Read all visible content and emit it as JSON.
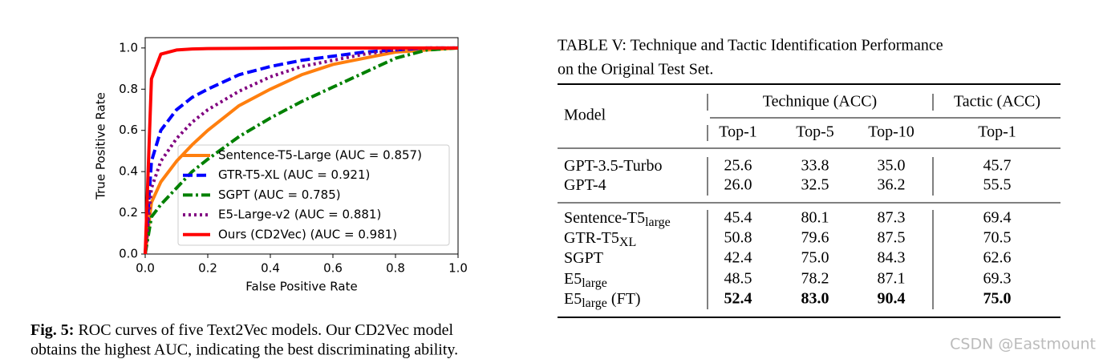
{
  "chart_data": {
    "type": "line",
    "xlabel": "False Positive Rate",
    "ylabel": "True Positive Rate",
    "x": [
      0,
      0.02,
      0.05,
      0.1,
      0.15,
      0.2,
      0.3,
      0.4,
      0.5,
      0.6,
      0.7,
      0.8,
      0.9,
      1
    ],
    "series": [
      {
        "name": "Sentence-T5-Large (AUC = 0.857)",
        "color": "#ff7f0e",
        "linestyle": "solid",
        "values": [
          0,
          0.25,
          0.35,
          0.45,
          0.53,
          0.6,
          0.72,
          0.8,
          0.87,
          0.92,
          0.95,
          0.98,
          0.99,
          1
        ]
      },
      {
        "name": "GTR-T5-XL (AUC = 0.921)",
        "color": "#0000ff",
        "linestyle": "dashed",
        "values": [
          0,
          0.45,
          0.6,
          0.7,
          0.76,
          0.8,
          0.87,
          0.91,
          0.94,
          0.96,
          0.98,
          0.99,
          1,
          1
        ]
      },
      {
        "name": "SGPT (AUC = 0.785)",
        "color": "#008000",
        "linestyle": "dashdot",
        "values": [
          0,
          0.18,
          0.24,
          0.32,
          0.4,
          0.46,
          0.57,
          0.66,
          0.74,
          0.81,
          0.88,
          0.95,
          0.99,
          1
        ]
      },
      {
        "name": "E5-Large-v2 (AUC = 0.881)",
        "color": "#800080",
        "linestyle": "dotted",
        "values": [
          0,
          0.32,
          0.45,
          0.56,
          0.64,
          0.7,
          0.79,
          0.86,
          0.91,
          0.94,
          0.97,
          0.99,
          1,
          1
        ]
      },
      {
        "name": "Ours (CD2Vec) (AUC = 0.981)",
        "color": "#ff0000",
        "linestyle": "solid",
        "values": [
          0,
          0.85,
          0.97,
          0.99,
          0.995,
          0.997,
          0.998,
          0.999,
          1,
          1,
          1,
          1,
          1,
          1
        ]
      }
    ],
    "xlim": [
      0,
      1
    ],
    "ylim": [
      0,
      1.05
    ],
    "xticks": [
      {
        "value": 0,
        "label": "0.0"
      },
      0.2,
      0.4,
      0.6,
      0.8,
      {
        "value": 1,
        "label": "1.0"
      }
    ],
    "yticks": [
      {
        "value": 0,
        "label": "0.0"
      },
      0.2,
      0.4,
      0.6,
      0.8,
      {
        "value": 1,
        "label": "1.0"
      }
    ],
    "legend": "lower right"
  },
  "figure_caption": {
    "label": "Fig. 5:",
    "text_lines": [
      "ROC curves of five Text2Vec models. Our CD2Vec model",
      "obtains the highest AUC, indicating the best discriminating ability."
    ]
  },
  "table": {
    "caption_lines": [
      "TABLE V: Technique and Tactic Identification Performance",
      "on the Original Test Set."
    ],
    "header": {
      "model": "Model",
      "groups": [
        "Technique (ACC)",
        "Tactic (ACC)"
      ],
      "columns": [
        "Top-1",
        "Top-5",
        "Top-10",
        "Top-1"
      ]
    },
    "row_groups": [
      [
        {
          "model": {
            "name": "GPT-3.5-Turbo"
          },
          "cells": [
            "25.6",
            "33.8",
            "35.0",
            "45.7"
          ]
        },
        {
          "model": {
            "name": "GPT-4"
          },
          "cells": [
            "26.0",
            "32.5",
            "36.2",
            "55.5"
          ]
        }
      ],
      [
        {
          "model": {
            "name": "Sentence-T5",
            "sub": "large"
          },
          "cells": [
            "45.4",
            "80.1",
            "87.3",
            "69.4"
          ]
        },
        {
          "model": {
            "name": "GTR-T5",
            "sub": "XL"
          },
          "cells": [
            "50.8",
            "79.6",
            "87.5",
            "70.5"
          ]
        },
        {
          "model": {
            "name": "SGPT"
          },
          "cells": [
            "42.4",
            "75.0",
            "84.3",
            "62.6"
          ]
        },
        {
          "model": {
            "name": "E5",
            "sub": "large"
          },
          "cells": [
            "48.5",
            "78.2",
            "87.1",
            "69.3"
          ]
        },
        {
          "model": {
            "name": "E5",
            "sub": "large",
            "suffix": " (FT)"
          },
          "cells": [
            "52.4",
            "83.0",
            "90.4",
            "75.0"
          ],
          "bold": true
        }
      ]
    ]
  },
  "watermark": "CSDN @Eastmount"
}
